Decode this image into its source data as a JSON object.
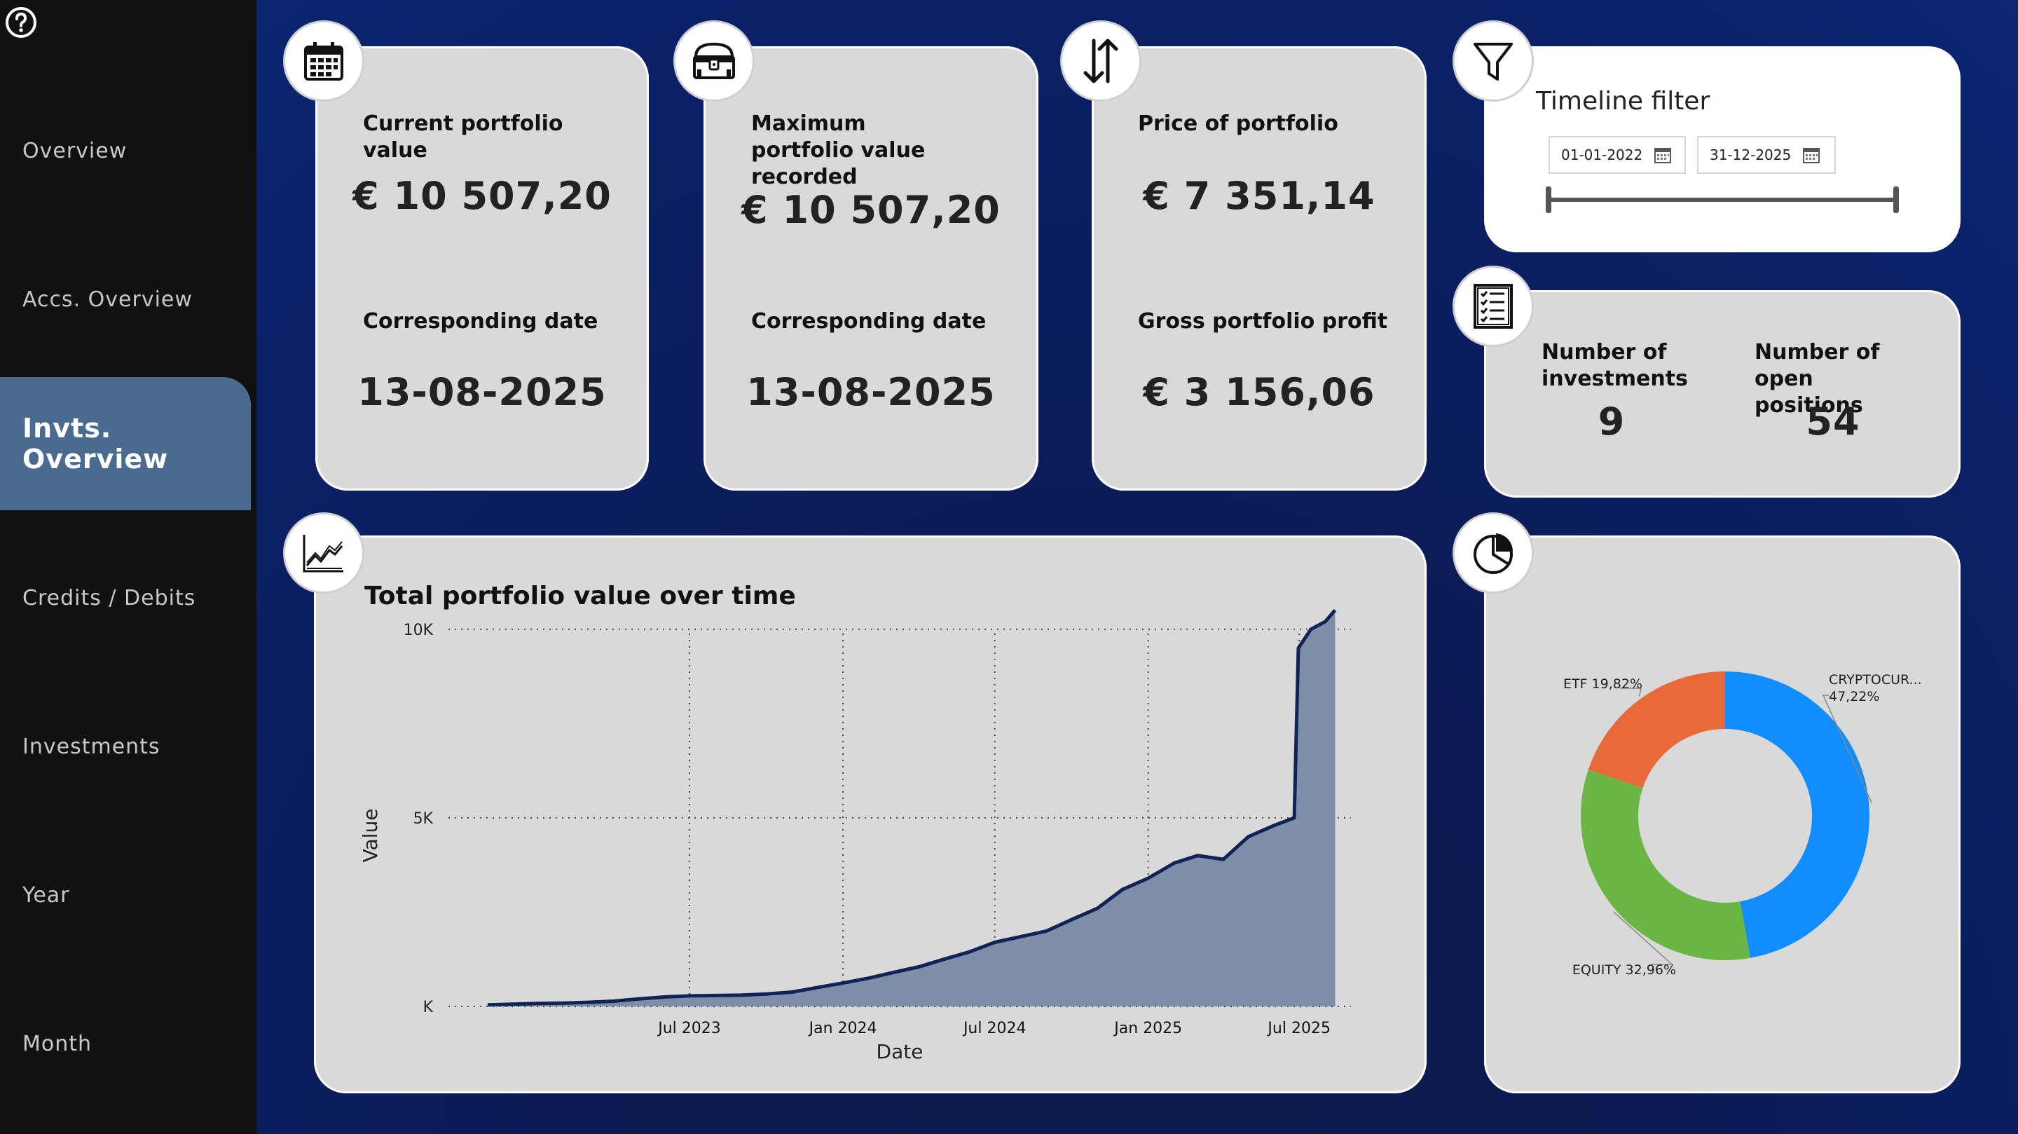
{
  "sidebar": {
    "items": [
      {
        "label": "Overview"
      },
      {
        "label": "Accs. Overview"
      },
      {
        "label": "Invts. Overview"
      },
      {
        "label": "Credits / Debits"
      },
      {
        "label": "Investments"
      },
      {
        "label": "Year"
      },
      {
        "label": "Month"
      }
    ],
    "active_index": 2
  },
  "kpi": {
    "current": {
      "label": "Current portfolio value",
      "value": "€ 10 507,20",
      "date_label": "Corresponding date",
      "date": "13-08-2025"
    },
    "maximum": {
      "label": "Maximum portfolio value recorded",
      "value": "€ 10 507,20",
      "date_label": "Corresponding date",
      "date": "13-08-2025"
    },
    "price": {
      "label": "Price of portfolio",
      "value": "€ 7 351,14",
      "profit_label": "Gross portfolio profit",
      "profit": "€ 3 156,06"
    }
  },
  "timeline": {
    "title": "Timeline filter",
    "start": "01-01-2022",
    "end": "31-12-2025"
  },
  "counts": {
    "investments_label": "Number of investments",
    "investments": "9",
    "positions_label": "Number of open positions",
    "positions": "54"
  },
  "icons": [
    "help-icon",
    "calendar-icon",
    "treasure-chest-icon",
    "sort-arrows-icon",
    "filter-icon",
    "checklist-icon",
    "line-chart-icon",
    "pie-chart-icon"
  ],
  "colors": {
    "accent": "#4a6a90",
    "line": "#0f2356",
    "area": "#7f8ea8",
    "crypto": "#118dff",
    "equity": "#6ab543",
    "etf": "#e8693a"
  },
  "chart_data": [
    {
      "type": "area",
      "title": "Total portfolio value over time",
      "xlabel": "Date",
      "ylabel": "Value",
      "ylim": [
        0,
        11000
      ],
      "y_ticks": [
        {
          "v": 0,
          "label": "K"
        },
        {
          "v": 5000,
          "label": "5K"
        },
        {
          "v": 10000,
          "label": "10K"
        }
      ],
      "x_ticks": [
        "Jul 2023",
        "Jan 2024",
        "Jul 2024",
        "Jan 2025",
        "Jul 2025"
      ],
      "grid": true,
      "x": [
        "2022-11-01",
        "2022-12-01",
        "2023-01-01",
        "2023-02-01",
        "2023-03-01",
        "2023-04-01",
        "2023-05-01",
        "2023-06-01",
        "2023-07-01",
        "2023-08-01",
        "2023-09-01",
        "2023-10-01",
        "2023-11-01",
        "2023-12-01",
        "2024-01-01",
        "2024-02-01",
        "2024-03-01",
        "2024-04-01",
        "2024-05-01",
        "2024-06-01",
        "2024-07-01",
        "2024-08-01",
        "2024-09-01",
        "2024-10-01",
        "2024-11-01",
        "2024-12-01",
        "2025-01-01",
        "2025-02-01",
        "2025-03-01",
        "2025-04-01",
        "2025-05-01",
        "2025-06-01",
        "2025-06-25",
        "2025-06-30",
        "2025-07-15",
        "2025-08-01",
        "2025-08-13"
      ],
      "values": [
        40,
        60,
        80,
        90,
        110,
        140,
        200,
        250,
        280,
        290,
        300,
        330,
        380,
        500,
        620,
        750,
        900,
        1050,
        1250,
        1450,
        1700,
        1850,
        2000,
        2300,
        2600,
        3100,
        3400,
        3800,
        4000,
        3900,
        4500,
        4800,
        5000,
        9500,
        10000,
        10200,
        10507
      ]
    },
    {
      "type": "pie",
      "labels": [
        "CRYPTOCUR...",
        "EQUITY",
        "ETF"
      ],
      "values": [
        47.22,
        32.96,
        19.82
      ],
      "display_labels": [
        "47,22%",
        "EQUITY 32,96%",
        "ETF 19,82%"
      ]
    }
  ]
}
